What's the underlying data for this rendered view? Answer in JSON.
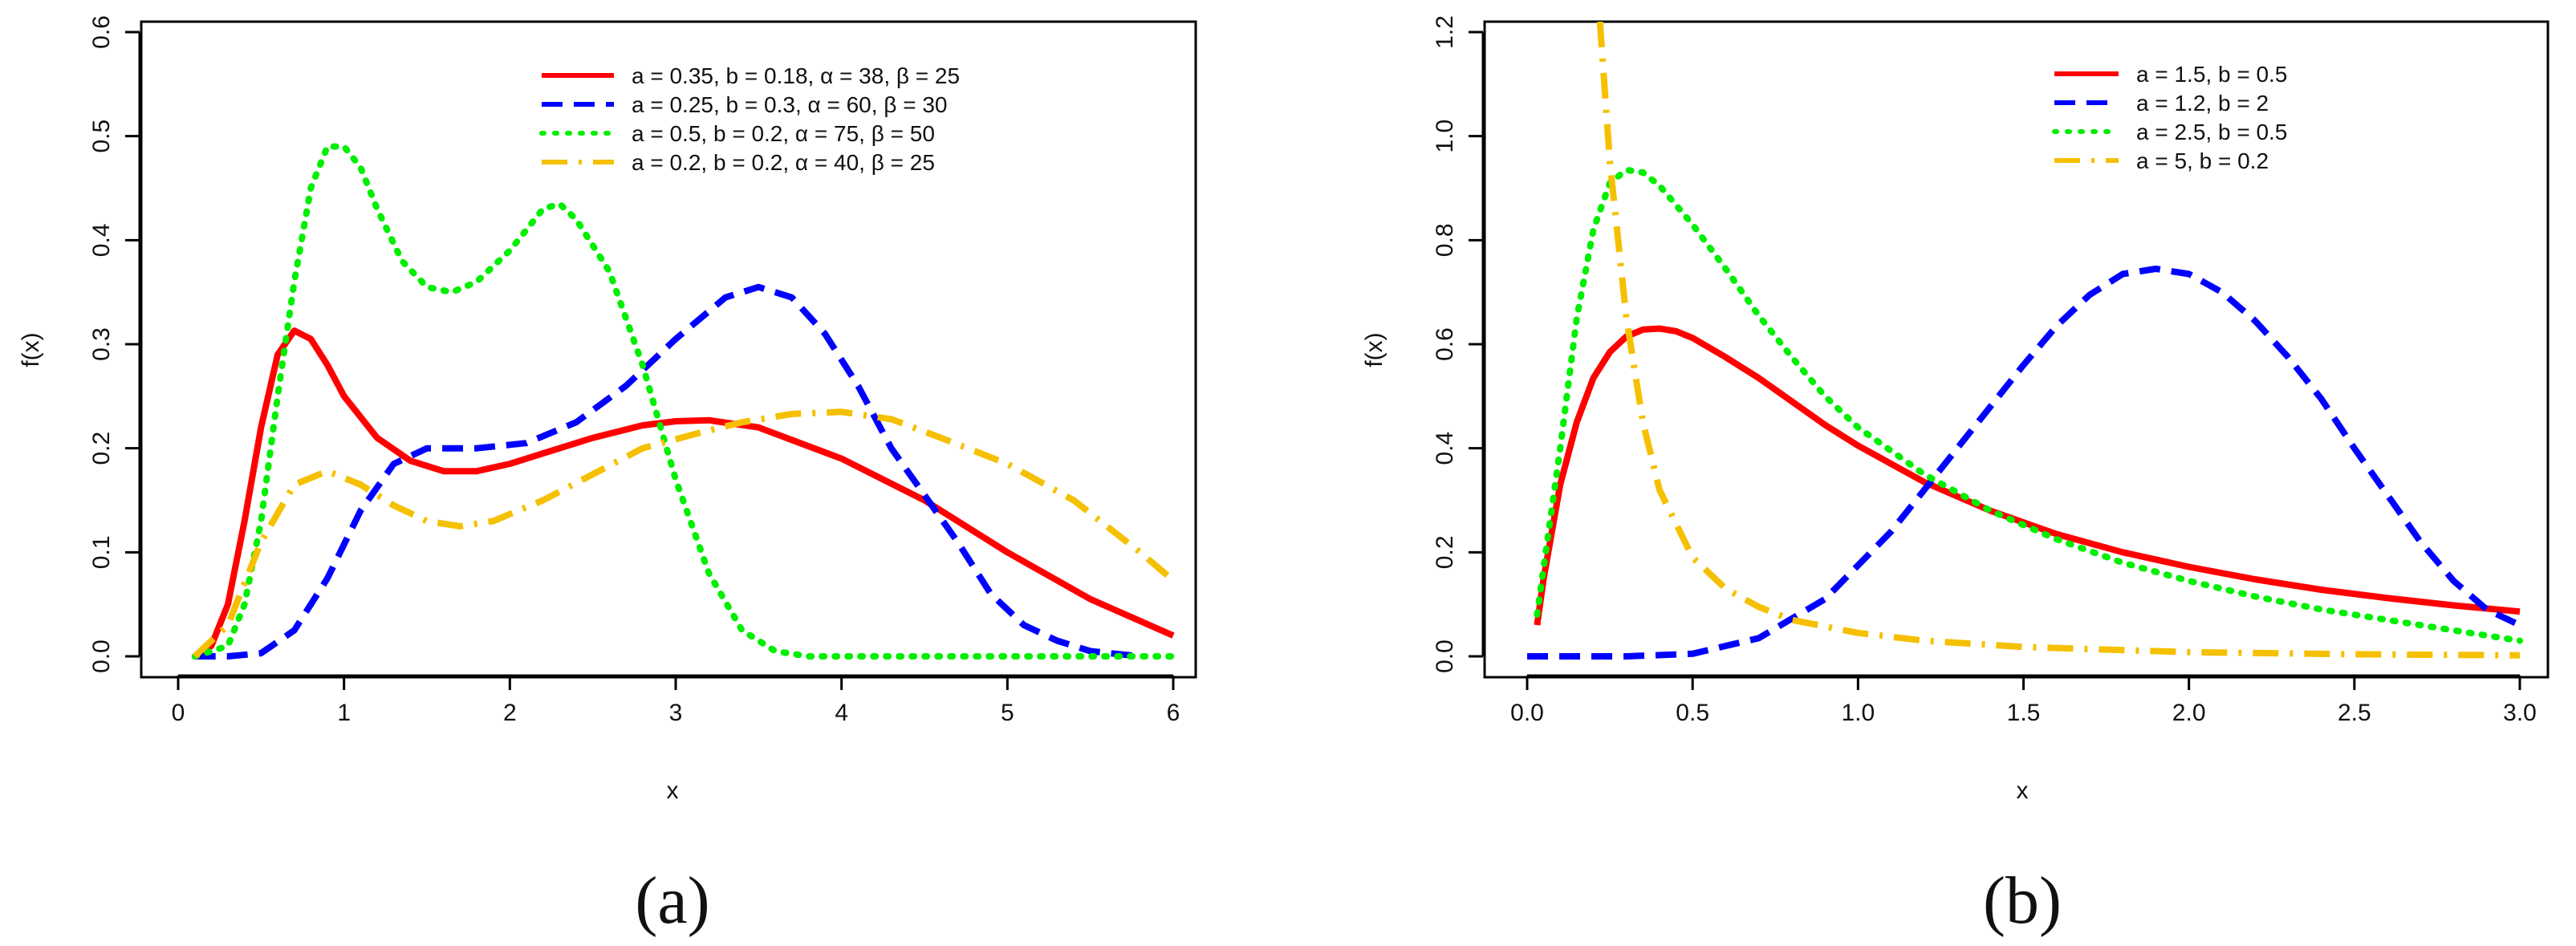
{
  "chart_data": [
    {
      "panel_label": "(a)",
      "type": "line",
      "title": "",
      "xlabel": "x",
      "ylabel": "f(x)",
      "xlim": [
        0,
        6
      ],
      "ylim": [
        0,
        0.6
      ],
      "xticks": [
        "0",
        "1",
        "2",
        "3",
        "4",
        "5",
        "6"
      ],
      "yticks": [
        "0.0",
        "0.1",
        "0.2",
        "0.3",
        "0.4",
        "0.5",
        "0.6"
      ],
      "xtick_values": [
        0,
        1,
        2,
        3,
        4,
        5,
        6
      ],
      "ytick_values": [
        0,
        0.1,
        0.2,
        0.3,
        0.4,
        0.5,
        0.6
      ],
      "grid": false,
      "legend_position": "top-right",
      "series": [
        {
          "name": "a = 0.35, b = 0.18, α = 38, β = 25",
          "color": "#ff0000",
          "style": "solid",
          "points": [
            [
              0.1,
              0
            ],
            [
              0.2,
              0.01
            ],
            [
              0.3,
              0.05
            ],
            [
              0.4,
              0.13
            ],
            [
              0.5,
              0.22
            ],
            [
              0.6,
              0.29
            ],
            [
              0.7,
              0.313
            ],
            [
              0.8,
              0.305
            ],
            [
              0.9,
              0.28
            ],
            [
              1.0,
              0.25
            ],
            [
              1.2,
              0.21
            ],
            [
              1.4,
              0.188
            ],
            [
              1.6,
              0.178
            ],
            [
              1.8,
              0.178
            ],
            [
              2.0,
              0.185
            ],
            [
              2.2,
              0.195
            ],
            [
              2.5,
              0.21
            ],
            [
              2.8,
              0.222
            ],
            [
              3.0,
              0.226
            ],
            [
              3.2,
              0.227
            ],
            [
              3.5,
              0.22
            ],
            [
              4.0,
              0.19
            ],
            [
              4.5,
              0.15
            ],
            [
              5.0,
              0.1
            ],
            [
              5.5,
              0.055
            ],
            [
              6.0,
              0.02
            ]
          ]
        },
        {
          "name": "a = 0.25, b = 0.3, α = 60, β = 30",
          "color": "#0000ff",
          "style": "dashed",
          "points": [
            [
              0.1,
              0
            ],
            [
              0.3,
              0
            ],
            [
              0.5,
              0.003
            ],
            [
              0.7,
              0.025
            ],
            [
              0.9,
              0.075
            ],
            [
              1.1,
              0.14
            ],
            [
              1.3,
              0.185
            ],
            [
              1.5,
              0.2
            ],
            [
              1.8,
              0.2
            ],
            [
              2.1,
              0.205
            ],
            [
              2.4,
              0.225
            ],
            [
              2.7,
              0.26
            ],
            [
              3.0,
              0.305
            ],
            [
              3.3,
              0.345
            ],
            [
              3.5,
              0.355
            ],
            [
              3.7,
              0.345
            ],
            [
              3.9,
              0.31
            ],
            [
              4.1,
              0.26
            ],
            [
              4.3,
              0.2
            ],
            [
              4.5,
              0.155
            ],
            [
              4.7,
              0.11
            ],
            [
              4.9,
              0.06
            ],
            [
              5.1,
              0.03
            ],
            [
              5.3,
              0.015
            ],
            [
              5.5,
              0.005
            ],
            [
              5.8,
              0
            ]
          ]
        },
        {
          "name": "a = 0.5, b = 0.2, α = 75, β = 50",
          "color": "#00ee00",
          "style": "dotted",
          "points": [
            [
              0.1,
              0
            ],
            [
              0.3,
              0.01
            ],
            [
              0.4,
              0.05
            ],
            [
              0.5,
              0.13
            ],
            [
              0.6,
              0.25
            ],
            [
              0.7,
              0.36
            ],
            [
              0.8,
              0.45
            ],
            [
              0.9,
              0.49
            ],
            [
              1.0,
              0.49
            ],
            [
              1.1,
              0.47
            ],
            [
              1.2,
              0.43
            ],
            [
              1.35,
              0.38
            ],
            [
              1.5,
              0.355
            ],
            [
              1.65,
              0.35
            ],
            [
              1.8,
              0.36
            ],
            [
              2.0,
              0.39
            ],
            [
              2.2,
              0.43
            ],
            [
              2.3,
              0.435
            ],
            [
              2.4,
              0.42
            ],
            [
              2.6,
              0.37
            ],
            [
              2.8,
              0.28
            ],
            [
              3.0,
              0.17
            ],
            [
              3.2,
              0.08
            ],
            [
              3.4,
              0.025
            ],
            [
              3.6,
              0.005
            ],
            [
              3.8,
              0
            ],
            [
              6.0,
              0
            ]
          ]
        },
        {
          "name": "a = 0.2, b = 0.2, α = 40, β = 25",
          "color": "#f5c000",
          "style": "dashdot",
          "points": [
            [
              0.1,
              0
            ],
            [
              0.3,
              0.03
            ],
            [
              0.5,
              0.11
            ],
            [
              0.7,
              0.165
            ],
            [
              0.9,
              0.178
            ],
            [
              1.1,
              0.165
            ],
            [
              1.3,
              0.145
            ],
            [
              1.5,
              0.13
            ],
            [
              1.7,
              0.125
            ],
            [
              1.9,
              0.13
            ],
            [
              2.2,
              0.15
            ],
            [
              2.5,
              0.175
            ],
            [
              2.8,
              0.2
            ],
            [
              3.1,
              0.213
            ],
            [
              3.4,
              0.225
            ],
            [
              3.7,
              0.233
            ],
            [
              4.0,
              0.235
            ],
            [
              4.3,
              0.228
            ],
            [
              4.6,
              0.21
            ],
            [
              5.0,
              0.185
            ],
            [
              5.4,
              0.15
            ],
            [
              5.8,
              0.1
            ],
            [
              6.0,
              0.073
            ]
          ]
        }
      ]
    },
    {
      "panel_label": "(b)",
      "type": "line",
      "title": "",
      "xlabel": "x",
      "ylabel": "f(x)",
      "xlim": [
        0,
        3
      ],
      "ylim": [
        0,
        1.2
      ],
      "xticks": [
        "0.0",
        "0.5",
        "1.0",
        "1.5",
        "2.0",
        "2.5",
        "3.0"
      ],
      "yticks": [
        "0.0",
        "0.2",
        "0.4",
        "0.6",
        "0.8",
        "1.0",
        "1.2"
      ],
      "xtick_values": [
        0,
        0.5,
        1.0,
        1.5,
        2.0,
        2.5,
        3.0
      ],
      "ytick_values": [
        0,
        0.2,
        0.4,
        0.6,
        0.8,
        1.0,
        1.2
      ],
      "grid": false,
      "legend_position": "top-right",
      "series": [
        {
          "name": "a = 1.5, b = 0.5",
          "color": "#ff0000",
          "style": "solid",
          "points": [
            [
              0.03,
              0.06
            ],
            [
              0.05,
              0.15
            ],
            [
              0.1,
              0.33
            ],
            [
              0.15,
              0.45
            ],
            [
              0.2,
              0.535
            ],
            [
              0.25,
              0.585
            ],
            [
              0.3,
              0.615
            ],
            [
              0.35,
              0.628
            ],
            [
              0.4,
              0.63
            ],
            [
              0.45,
              0.625
            ],
            [
              0.5,
              0.612
            ],
            [
              0.6,
              0.575
            ],
            [
              0.7,
              0.535
            ],
            [
              0.8,
              0.49
            ],
            [
              0.9,
              0.445
            ],
            [
              1.0,
              0.405
            ],
            [
              1.2,
              0.335
            ],
            [
              1.4,
              0.28
            ],
            [
              1.6,
              0.235
            ],
            [
              1.8,
              0.2
            ],
            [
              2.0,
              0.172
            ],
            [
              2.2,
              0.148
            ],
            [
              2.4,
              0.128
            ],
            [
              2.6,
              0.112
            ],
            [
              2.8,
              0.098
            ],
            [
              3.0,
              0.086
            ]
          ]
        },
        {
          "name": "a = 1.2, b = 2",
          "color": "#0000ff",
          "style": "dashed",
          "points": [
            [
              0,
              0
            ],
            [
              0.3,
              0
            ],
            [
              0.5,
              0.005
            ],
            [
              0.7,
              0.035
            ],
            [
              0.9,
              0.11
            ],
            [
              1.1,
              0.24
            ],
            [
              1.3,
              0.4
            ],
            [
              1.5,
              0.56
            ],
            [
              1.6,
              0.635
            ],
            [
              1.7,
              0.695
            ],
            [
              1.8,
              0.735
            ],
            [
              1.9,
              0.745
            ],
            [
              2.0,
              0.735
            ],
            [
              2.1,
              0.7
            ],
            [
              2.2,
              0.645
            ],
            [
              2.3,
              0.575
            ],
            [
              2.4,
              0.495
            ],
            [
              2.5,
              0.4
            ],
            [
              2.6,
              0.31
            ],
            [
              2.7,
              0.22
            ],
            [
              2.8,
              0.145
            ],
            [
              2.9,
              0.09
            ],
            [
              3.0,
              0.06
            ]
          ]
        },
        {
          "name": "a = 2.5, b = 0.5",
          "color": "#00ee00",
          "style": "dotted",
          "points": [
            [
              0.03,
              0.08
            ],
            [
              0.1,
              0.4
            ],
            [
              0.15,
              0.65
            ],
            [
              0.2,
              0.82
            ],
            [
              0.25,
              0.91
            ],
            [
              0.3,
              0.935
            ],
            [
              0.35,
              0.93
            ],
            [
              0.4,
              0.905
            ],
            [
              0.5,
              0.83
            ],
            [
              0.6,
              0.745
            ],
            [
              0.7,
              0.655
            ],
            [
              0.8,
              0.575
            ],
            [
              0.9,
              0.5
            ],
            [
              1.0,
              0.44
            ],
            [
              1.2,
              0.35
            ],
            [
              1.4,
              0.28
            ],
            [
              1.6,
              0.225
            ],
            [
              1.8,
              0.18
            ],
            [
              2.0,
              0.145
            ],
            [
              2.2,
              0.115
            ],
            [
              2.4,
              0.09
            ],
            [
              2.6,
              0.07
            ],
            [
              2.8,
              0.05
            ],
            [
              3.0,
              0.03
            ]
          ]
        },
        {
          "name": "a = 5, b = 0.2",
          "color": "#f5c000",
          "style": "dashdot",
          "points": [
            [
              0.22,
              1.22
            ],
            [
              0.25,
              0.95
            ],
            [
              0.3,
              0.65
            ],
            [
              0.35,
              0.45
            ],
            [
              0.4,
              0.32
            ],
            [
              0.5,
              0.19
            ],
            [
              0.6,
              0.13
            ],
            [
              0.7,
              0.095
            ],
            [
              0.8,
              0.07
            ],
            [
              1.0,
              0.045
            ],
            [
              1.2,
              0.03
            ],
            [
              1.5,
              0.018
            ],
            [
              2.0,
              0.008
            ],
            [
              2.5,
              0.004
            ],
            [
              3.0,
              0.002
            ]
          ]
        }
      ]
    }
  ]
}
